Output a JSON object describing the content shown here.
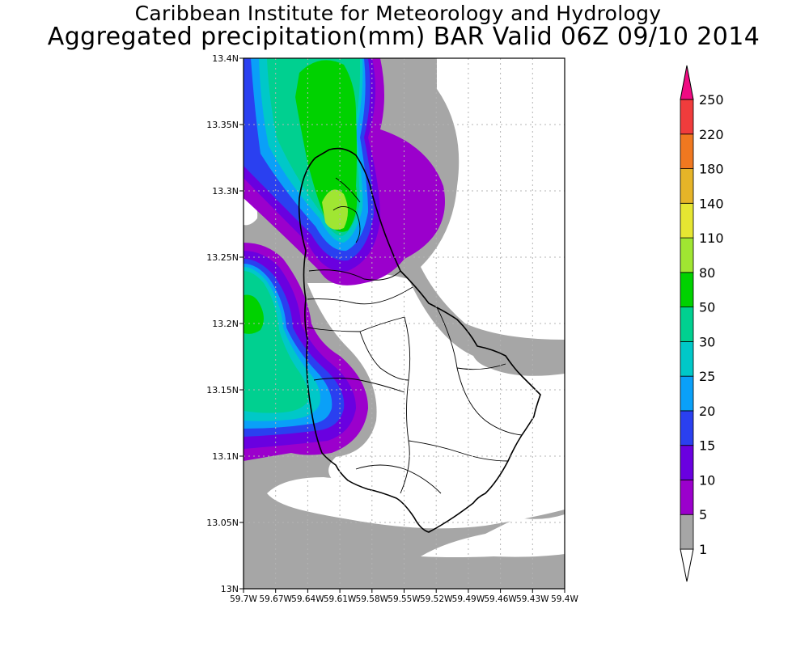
{
  "header": {
    "title": "Caribbean Institute for Meteorology and Hydrology",
    "subtitle": "Aggregated precipitation(mm) BAR Valid 06Z 09/10 2014"
  },
  "map": {
    "region": "Barbados",
    "lon_range": [
      -59.7,
      -59.4
    ],
    "lat_range": [
      13.0,
      13.4
    ],
    "lat_ticks": [
      {
        "value": 13.4,
        "label": "13.4N"
      },
      {
        "value": 13.35,
        "label": "13.35N"
      },
      {
        "value": 13.3,
        "label": "13.3N"
      },
      {
        "value": 13.25,
        "label": "13.25N"
      },
      {
        "value": 13.2,
        "label": "13.2N"
      },
      {
        "value": 13.15,
        "label": "13.15N"
      },
      {
        "value": 13.1,
        "label": "13.1N"
      },
      {
        "value": 13.05,
        "label": "13.05N"
      },
      {
        "value": 13.0,
        "label": "13N"
      }
    ],
    "lon_ticks": [
      {
        "value": -59.7,
        "label": "59.7W"
      },
      {
        "value": -59.67,
        "label": "59.67W"
      },
      {
        "value": -59.64,
        "label": "59.64W"
      },
      {
        "value": -59.61,
        "label": "59.61W"
      },
      {
        "value": -59.58,
        "label": "59.58W"
      },
      {
        "value": -59.55,
        "label": "59.55W"
      },
      {
        "value": -59.52,
        "label": "59.52W"
      },
      {
        "value": -59.49,
        "label": "59.49W"
      },
      {
        "value": -59.46,
        "label": "59.46W"
      },
      {
        "value": -59.43,
        "label": "59.43W"
      },
      {
        "value": -59.4,
        "label": "59.4W"
      }
    ],
    "grid": true,
    "colors": {
      "land_outline": "#000000",
      "grid": "#b4b4b4",
      "background": "#ffffff"
    }
  },
  "colorbar": {
    "levels": [
      "1",
      "5",
      "10",
      "15",
      "20",
      "25",
      "30",
      "50",
      "80",
      "110",
      "140",
      "180",
      "220",
      "250"
    ],
    "colors": [
      "#ffffff",
      "#a6a6a6",
      "#9b00cc",
      "#6a00e0",
      "#2a40f0",
      "#0aa0f8",
      "#00c8c8",
      "#00d090",
      "#00d200",
      "#a0e632",
      "#e6e632",
      "#e6b428",
      "#f07820",
      "#f03c3c",
      "#f00a82"
    ]
  }
}
